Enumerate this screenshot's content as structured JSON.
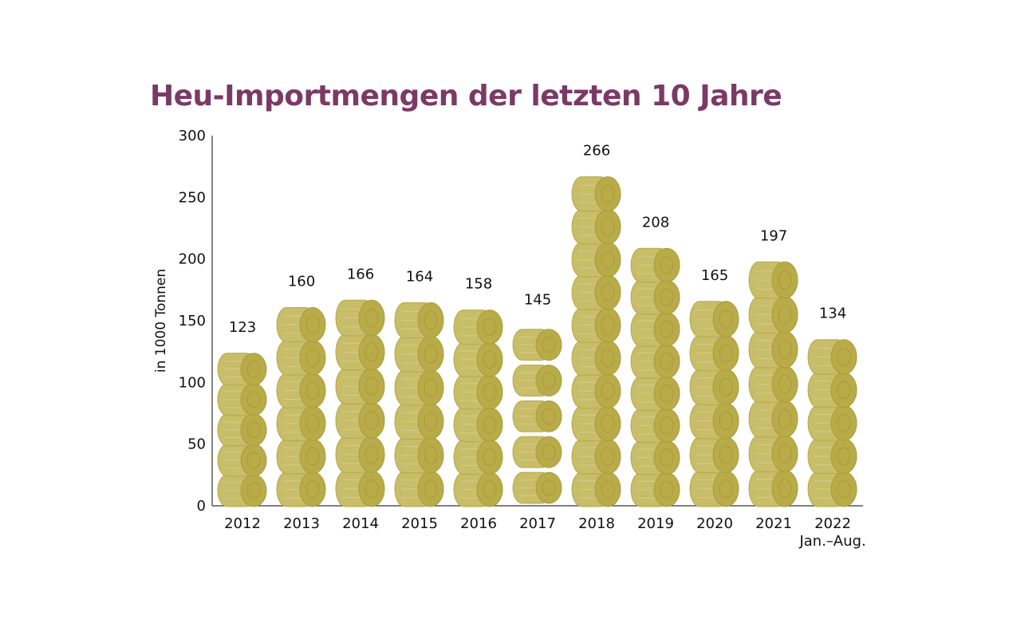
{
  "chart_data": {
    "type": "bar",
    "title": "Heu-Importmengen der letzten 10 Jahre",
    "ylabel": "in 1000 Tonnen",
    "xlabel": "",
    "ylim": [
      0,
      300
    ],
    "yticks": [
      "0",
      "50",
      "100",
      "150",
      "200",
      "250",
      "300"
    ],
    "categories": [
      "2012",
      "2013",
      "2014",
      "2015",
      "2016",
      "2017",
      "2018",
      "2019",
      "2020",
      "2021",
      "2022"
    ],
    "category_notes": {
      "2022": "Jan.–Aug."
    },
    "values": [
      123,
      160,
      166,
      164,
      158,
      145,
      266,
      208,
      165,
      197,
      134
    ],
    "grid": false,
    "mark_style": "stacked hay bales",
    "colors": {
      "title": "#7b3a66",
      "bale": "#c8bd68",
      "bale_end": "#b9ab48",
      "axis": "#333333"
    }
  }
}
